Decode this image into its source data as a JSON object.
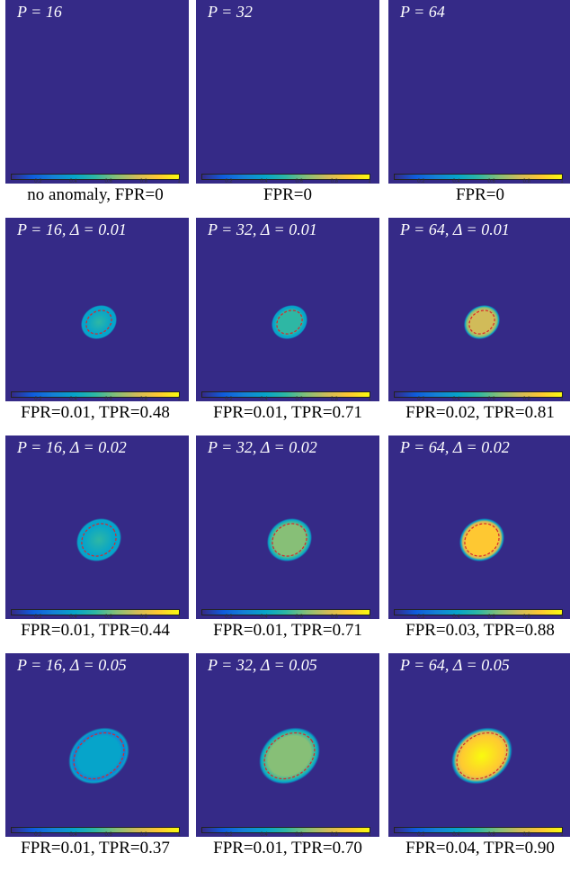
{
  "colorbar": {
    "ticks": [
      "0.2",
      "0.4",
      "0.6",
      "0.8",
      "1"
    ],
    "colors": [
      "#352a87",
      "#0f5cdd",
      "#1481d6",
      "#06a4ca",
      "#2eb7a4",
      "#87bf77",
      "#d1bb59",
      "#fec832",
      "#f9fb0e"
    ]
  },
  "panels": [
    {
      "title": "P = 16",
      "caption": "no anomaly, FPR=0",
      "blob": null
    },
    {
      "title": "P = 32",
      "caption": "FPR=0",
      "blob": null
    },
    {
      "title": "P = 64",
      "caption": "FPR=0",
      "blob": null
    },
    {
      "title": "P = 16, Δ = 0.01",
      "caption": "FPR=0.01, TPR=0.48",
      "blob": {
        "size": "small",
        "intensity": 0.45
      }
    },
    {
      "title": "P = 32, Δ = 0.01",
      "caption": "FPR=0.01, TPR=0.71",
      "blob": {
        "size": "small",
        "intensity": 0.55
      }
    },
    {
      "title": "P = 64, Δ = 0.01",
      "caption": "FPR=0.02, TPR=0.81",
      "blob": {
        "size": "small",
        "intensity": 0.8
      }
    },
    {
      "title": "P = 16, Δ = 0.02",
      "caption": "FPR=0.01, TPR=0.44",
      "blob": {
        "size": "medium",
        "intensity": 0.45
      }
    },
    {
      "title": "P = 32, Δ = 0.02",
      "caption": "FPR=0.01, TPR=0.71",
      "blob": {
        "size": "medium",
        "intensity": 0.6
      }
    },
    {
      "title": "P = 64, Δ = 0.02",
      "caption": "FPR=0.03, TPR=0.88",
      "blob": {
        "size": "medium",
        "intensity": 0.92
      }
    },
    {
      "title": "P = 16, Δ = 0.05",
      "caption": "FPR=0.01, TPR=0.37",
      "blob": {
        "size": "large",
        "intensity": 0.38
      }
    },
    {
      "title": "P = 32, Δ = 0.05",
      "caption": "FPR=0.01, TPR=0.70",
      "blob": {
        "size": "large",
        "intensity": 0.6
      }
    },
    {
      "title": "P = 64, Δ = 0.05",
      "caption": "FPR=0.04, TPR=0.90",
      "blob": {
        "size": "large",
        "intensity": 0.95
      }
    }
  ]
}
